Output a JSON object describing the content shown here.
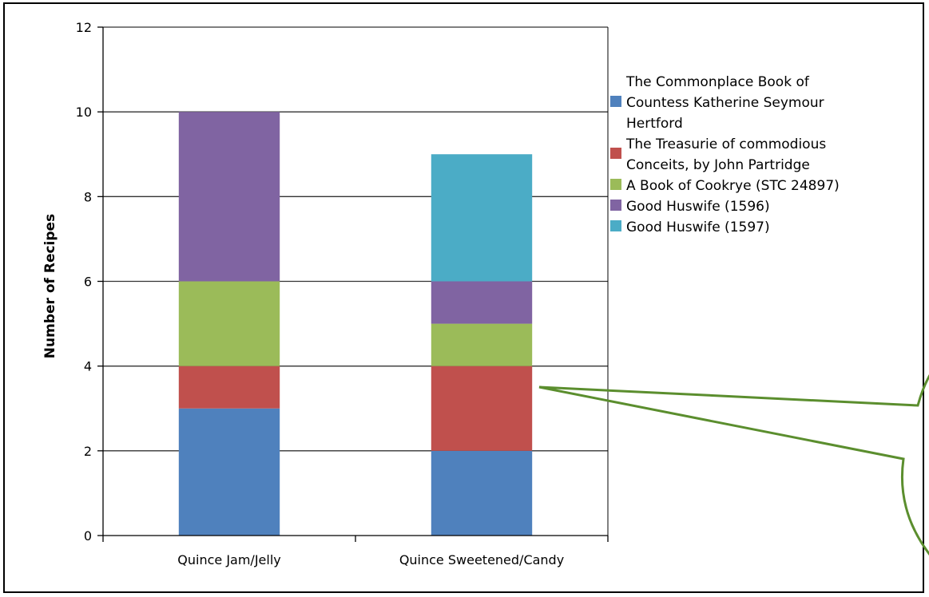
{
  "chart_data": {
    "type": "bar",
    "stacked": true,
    "title": "",
    "xlabel": "",
    "ylabel": "Number of Recipes",
    "ylim": [
      0,
      12
    ],
    "yticks": [
      0,
      2,
      4,
      6,
      8,
      10,
      12
    ],
    "grid": true,
    "legend": "right",
    "categories": [
      "Quince Jam/Jelly",
      "Quince Sweetened/Candy"
    ],
    "series": [
      {
        "name": "The Commonplace Book of Countess Katherine Seymour Hertford",
        "legend_lines": [
          "The Commonplace Book of",
          "Countess Katherine Seymour",
          "Hertford"
        ],
        "color": "#4F81BD",
        "values": [
          3,
          2
        ]
      },
      {
        "name": "The Treasurie of commodious Conceits, by John Partridge",
        "legend_lines": [
          "The Treasurie of commodious",
          "Conceits, by John Partridge"
        ],
        "color": "#C0504D",
        "values": [
          1,
          2
        ]
      },
      {
        "name": "A Book of Cookrye (STC 24897)",
        "legend_lines": [
          "A Book of Cookrye (STC 24897)"
        ],
        "color": "#9BBB59",
        "values": [
          2,
          1
        ]
      },
      {
        "name": "Good Huswife  (1596)",
        "legend_lines": [
          "Good Huswife  (1596)"
        ],
        "color": "#8064A2",
        "values": [
          4,
          1
        ]
      },
      {
        "name": "Good Huswife  (1597)",
        "legend_lines": [
          "Good Huswife  (1597)"
        ],
        "color": "#4BACC6",
        "values": [
          0,
          3
        ]
      }
    ],
    "annotation": {
      "shape": "speech-bubble",
      "color": "#5B8E2E",
      "points_to": "Quince Sweetened/Candy"
    }
  }
}
